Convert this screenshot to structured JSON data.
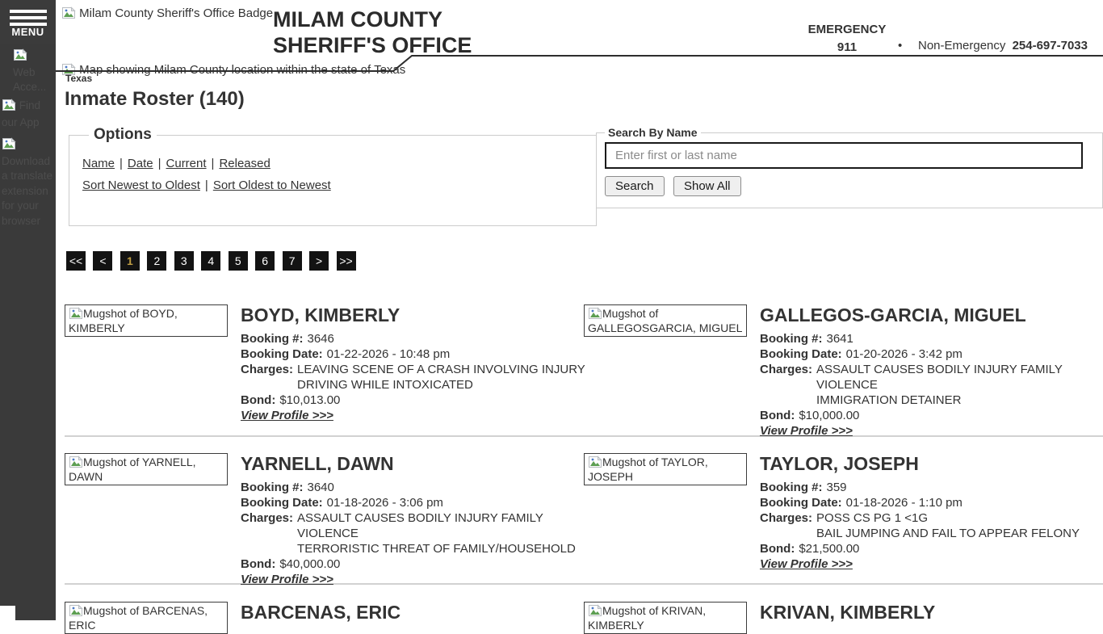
{
  "sidebar": {
    "menu_label": "MENU",
    "items": [
      {
        "label": "Web Acce..."
      },
      {
        "label": "Find our App"
      },
      {
        "label": "Download a translate extension for your browser"
      }
    ]
  },
  "header": {
    "badge_alt": "Milam County Sheriff's Office Badge",
    "title_line1": "MILAM COUNTY",
    "title_line2": "SHERIFF'S OFFICE",
    "emergency_label": "EMERGENCY",
    "emergency_number": "911",
    "separator": "•",
    "non_emergency_label": "Non-Emergency",
    "non_emergency_number": "254-697-7033",
    "map_alt": "Map showing Milam County location within the state of Texas",
    "map_caption": "Texas"
  },
  "page": {
    "title": "Inmate Roster (140)"
  },
  "options": {
    "legend": "Options",
    "filter_links": [
      "Name",
      "Date",
      "Current",
      "Released"
    ],
    "sort_links": [
      "Sort Newest to Oldest",
      "Sort Oldest to Newest"
    ],
    "separator": "|"
  },
  "search": {
    "legend": "Search By Name",
    "placeholder": "Enter first or last name",
    "value": "",
    "search_button": "Search",
    "show_all_button": "Show All"
  },
  "pagination": {
    "items": [
      "<<",
      "<",
      "1",
      "2",
      "3",
      "4",
      "5",
      "6",
      "7",
      ">",
      ">>"
    ],
    "current_page": "1"
  },
  "labels": {
    "booking_no": "Booking #:",
    "booking_date": "Booking Date:",
    "charges": "Charges:",
    "bond": "Bond:",
    "view_profile": "View Profile >>>"
  },
  "inmates": [
    {
      "name": "BOYD, KIMBERLY",
      "mugshot_alt": "Mugshot of BOYD, KIMBERLY",
      "booking_no": "3646",
      "booking_date": "01-22-2026 - 10:48 pm",
      "charges": [
        "LEAVING SCENE OF A CRASH INVOLVING INJURY",
        "DRIVING WHILE INTOXICATED"
      ],
      "bond": "$10,013.00"
    },
    {
      "name": "GALLEGOS-GARCIA, MIGUEL",
      "mugshot_alt": "Mugshot of GALLEGOSGARCIA, MIGUEL",
      "booking_no": "3641",
      "booking_date": "01-20-2026 - 3:42 pm",
      "charges": [
        "ASSAULT CAUSES BODILY INJURY FAMILY VIOLENCE",
        "IMMIGRATION DETAINER"
      ],
      "bond": "$10,000.00"
    },
    {
      "name": "YARNELL, DAWN",
      "mugshot_alt": "Mugshot of YARNELL, DAWN",
      "booking_no": "3640",
      "booking_date": "01-18-2026 - 3:06 pm",
      "charges": [
        "ASSAULT CAUSES BODILY INJURY FAMILY VIOLENCE",
        "TERRORISTIC THREAT OF FAMILY/HOUSEHOLD"
      ],
      "bond": "$40,000.00"
    },
    {
      "name": "TAYLOR, JOSEPH",
      "mugshot_alt": "Mugshot of TAYLOR, JOSEPH",
      "booking_no": "359",
      "booking_date": "01-18-2026 - 1:10 pm",
      "charges": [
        "POSS CS PG 1 <1G",
        "BAIL JUMPING AND FAIL TO APPEAR FELONY"
      ],
      "bond": "$21,500.00"
    },
    {
      "name": "BARCENAS, ERIC",
      "mugshot_alt": "Mugshot of BARCENAS, ERIC"
    },
    {
      "name": "KRIVAN, KIMBERLY",
      "mugshot_alt": "Mugshot of KRIVAN, KIMBERLY"
    }
  ],
  "colors": {
    "sidebar_bg": "#3a3a3a",
    "text": "#333333",
    "pager_bg": "#131313",
    "pager_current": "#bf9e44",
    "divider": "#d2d2d2",
    "fieldset_border": "#cccccc"
  }
}
